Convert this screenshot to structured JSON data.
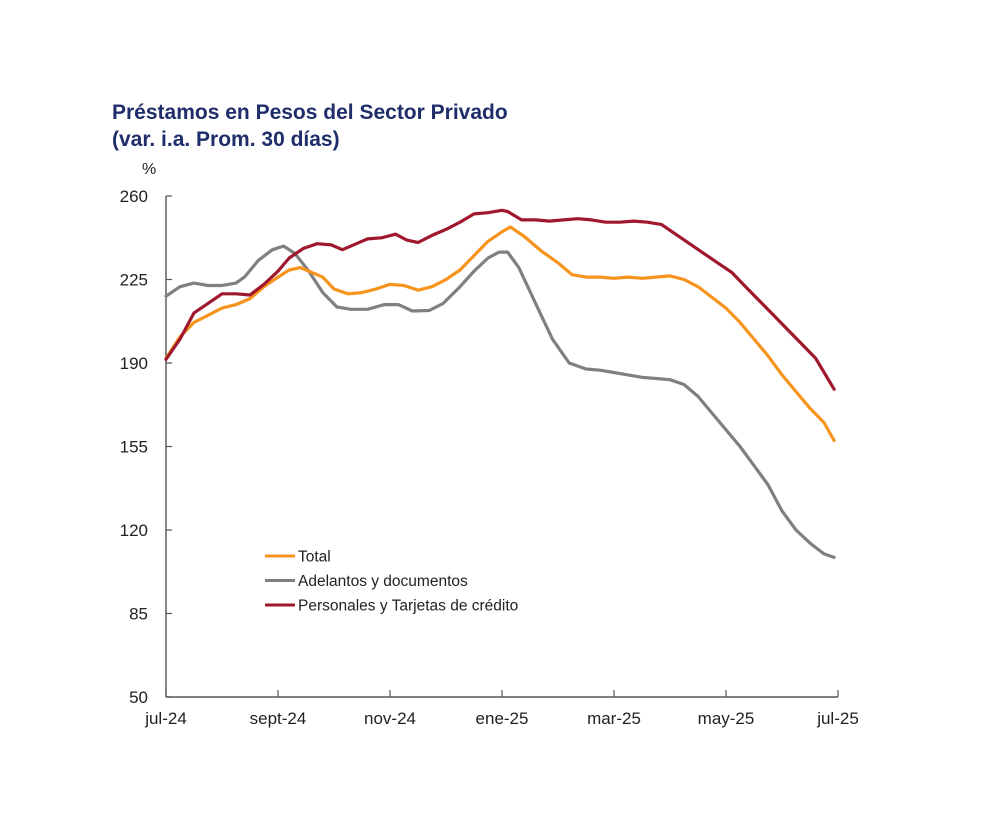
{
  "chart_data": {
    "type": "line",
    "title": "Préstamos en Pesos del Sector Privado",
    "subtitle": "(var. i.a. Prom. 30 días)",
    "ylabel": "%",
    "xlabel": "",
    "ylim": [
      50,
      260
    ],
    "yticks": [
      50,
      85,
      120,
      155,
      190,
      225,
      260
    ],
    "xlim_months": [
      0,
      12
    ],
    "xticks": [
      {
        "label": "jul-24",
        "month": 0
      },
      {
        "label": "sept-24",
        "month": 2
      },
      {
        "label": "nov-24",
        "month": 4
      },
      {
        "label": "ene-25",
        "month": 6
      },
      {
        "label": "mar-25",
        "month": 8
      },
      {
        "label": "may-25",
        "month": 10
      },
      {
        "label": "jul-25",
        "month": 12
      }
    ],
    "grid": false,
    "legend_position": "bottom-left-inside",
    "x_unit": "months since jul-24",
    "series": [
      {
        "name": "Total",
        "color": "#f7941d",
        "x": [
          0,
          0.25,
          0.5,
          0.75,
          1.0,
          1.25,
          1.5,
          1.75,
          2.0,
          2.2,
          2.4,
          2.6,
          2.8,
          3.0,
          3.25,
          3.5,
          3.75,
          4.0,
          4.25,
          4.5,
          4.75,
          5.0,
          5.25,
          5.5,
          5.75,
          6.0,
          6.15,
          6.4,
          6.7,
          7.0,
          7.25,
          7.5,
          7.75,
          8.0,
          8.25,
          8.5,
          8.75,
          9.0,
          9.25,
          9.5,
          9.75,
          10.0,
          10.25,
          10.5,
          10.75,
          11.0,
          11.25,
          11.5,
          11.75,
          11.93
        ],
        "values": [
          192,
          201,
          207,
          210,
          213,
          214.5,
          217,
          222,
          226,
          229,
          230,
          228,
          226,
          221,
          219,
          219.5,
          221,
          223,
          222.5,
          220.5,
          222,
          225,
          229,
          235,
          241,
          245,
          247,
          243,
          237,
          232,
          227,
          226,
          226,
          225.5,
          226,
          225.5,
          226,
          226.5,
          225,
          222,
          217.5,
          213,
          207,
          200,
          193,
          185,
          178,
          171,
          165,
          157.5
        ]
      },
      {
        "name": "Adelantos y documentos",
        "color": "#808080",
        "x": [
          0,
          0.25,
          0.5,
          0.75,
          1.0,
          1.25,
          1.4,
          1.65,
          1.9,
          2.1,
          2.3,
          2.55,
          2.8,
          3.05,
          3.3,
          3.6,
          3.9,
          4.15,
          4.4,
          4.7,
          4.95,
          5.25,
          5.5,
          5.75,
          5.95,
          6.1,
          6.3,
          6.6,
          6.9,
          7.2,
          7.5,
          7.75,
          8.0,
          8.25,
          8.5,
          8.75,
          9.0,
          9.25,
          9.5,
          9.75,
          10.0,
          10.25,
          10.5,
          10.75,
          11.0,
          11.25,
          11.5,
          11.75,
          11.93
        ],
        "values": [
          218,
          222,
          223.5,
          222.5,
          222.5,
          223.5,
          226,
          233,
          237.5,
          239,
          236,
          228.5,
          219.5,
          213.5,
          212.5,
          212.5,
          214.5,
          214.5,
          211.8,
          212,
          215,
          222,
          228.5,
          234,
          236.5,
          236.5,
          230,
          215,
          200,
          190,
          187.5,
          187,
          186,
          185,
          184,
          183.5,
          183,
          181,
          176,
          169,
          162,
          155,
          147,
          139,
          128,
          120,
          114.5,
          110,
          108.5
        ]
      },
      {
        "name": "Personales y Tarjetas de crédito",
        "color": "#a0182e",
        "x": [
          0,
          0.25,
          0.5,
          0.75,
          1.0,
          1.25,
          1.5,
          1.75,
          2.0,
          2.2,
          2.45,
          2.7,
          2.95,
          3.15,
          3.4,
          3.6,
          3.85,
          4.1,
          4.3,
          4.5,
          4.75,
          5.0,
          5.25,
          5.5,
          5.75,
          6.0,
          6.1,
          6.35,
          6.6,
          6.85,
          7.1,
          7.35,
          7.6,
          7.85,
          8.1,
          8.35,
          8.6,
          8.85,
          9.1,
          9.35,
          9.6,
          9.85,
          10.1,
          10.35,
          10.6,
          10.85,
          11.1,
          11.35,
          11.6,
          11.93
        ],
        "values": [
          191.5,
          200,
          211,
          215,
          219,
          219,
          218.5,
          223,
          228.5,
          234,
          238,
          240,
          239.5,
          237.5,
          240,
          242,
          242.5,
          244,
          241.5,
          240.5,
          243.5,
          246,
          249,
          252.5,
          253,
          254,
          253.5,
          250,
          250,
          249.5,
          250,
          250.5,
          250,
          249,
          249,
          249.5,
          249,
          248,
          244,
          240,
          236,
          232,
          228,
          222,
          216,
          210,
          204,
          198,
          192,
          179
        ]
      }
    ]
  }
}
